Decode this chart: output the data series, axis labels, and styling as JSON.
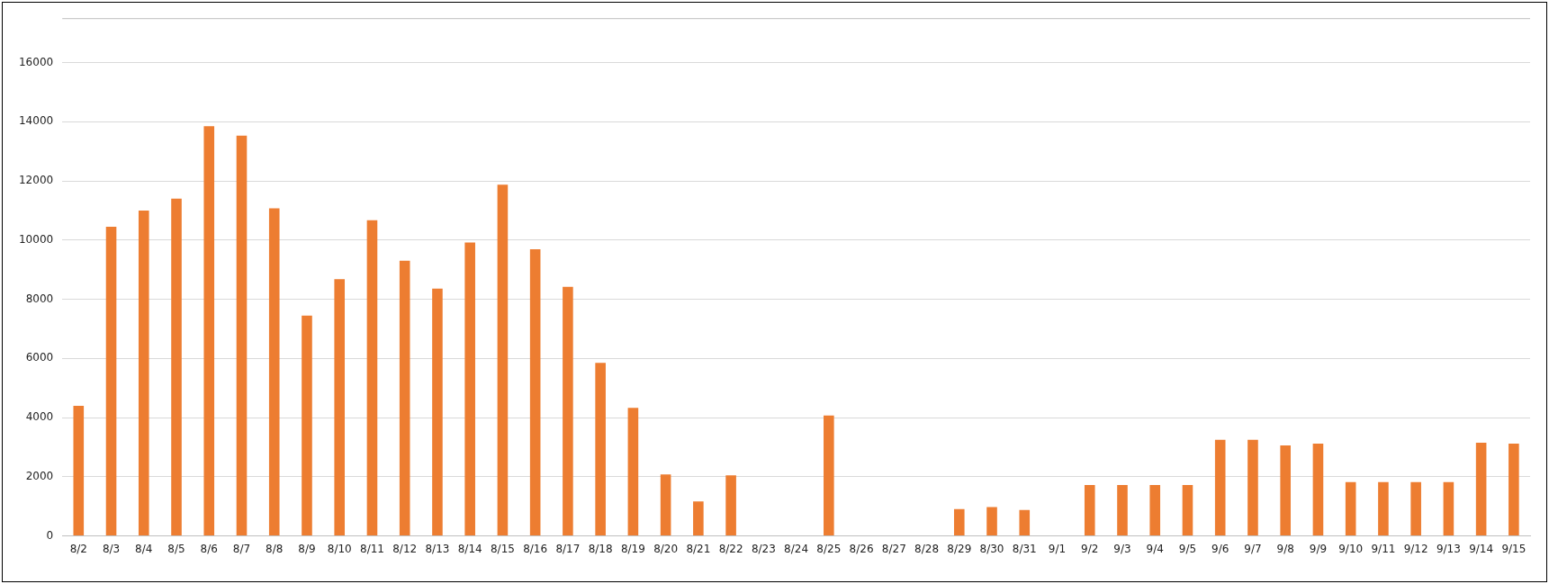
{
  "chart_data": {
    "type": "bar",
    "categories": [
      "8/2",
      "8/3",
      "8/4",
      "8/5",
      "8/6",
      "8/7",
      "8/8",
      "8/9",
      "8/10",
      "8/11",
      "8/12",
      "8/13",
      "8/14",
      "8/15",
      "8/16",
      "8/17",
      "8/18",
      "8/19",
      "8/20",
      "8/21",
      "8/22",
      "8/23",
      "8/24",
      "8/25",
      "8/26",
      "8/27",
      "8/28",
      "8/29",
      "8/30",
      "8/31",
      "9/1",
      "9/2",
      "9/3",
      "9/4",
      "9/5",
      "9/6",
      "9/7",
      "9/8",
      "9/9",
      "9/10",
      "9/11",
      "9/12",
      "9/13",
      "9/14",
      "9/15"
    ],
    "values": [
      4400,
      10450,
      11000,
      11400,
      13850,
      13530,
      11070,
      7450,
      8680,
      10670,
      9300,
      8360,
      9920,
      11870,
      9690,
      8420,
      5850,
      4330,
      2080,
      1170,
      2050,
      0,
      0,
      4070,
      0,
      0,
      0,
      910,
      980,
      880,
      0,
      1720,
      1720,
      1720,
      1720,
      3250,
      3250,
      3060,
      3120,
      1820,
      1820,
      1820,
      1820,
      3150,
      3120
    ],
    "color": "#ed7d31",
    "ylim": [
      0,
      17500
    ],
    "yticks": [
      0,
      2000,
      4000,
      6000,
      8000,
      10000,
      12000,
      14000,
      16000
    ],
    "grid": "y"
  }
}
